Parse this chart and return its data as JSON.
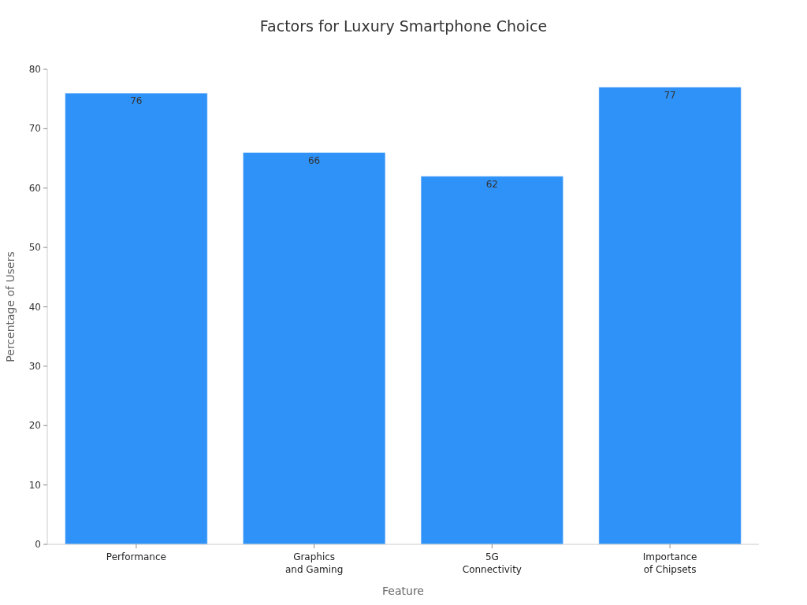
{
  "chart_data": {
    "type": "bar",
    "title": "Factors for Luxury Smartphone Choice",
    "xlabel": "Feature",
    "ylabel": "Percentage of Users",
    "categories": [
      "Performance",
      "Graphics\nand Gaming",
      "5G\nConnectivity",
      "Importance\nof Chipsets"
    ],
    "values": [
      76,
      66,
      62,
      77
    ],
    "color": "#2f92f8",
    "ylim": [
      0,
      80
    ],
    "yticks": [
      0,
      10,
      20,
      30,
      40,
      50,
      60,
      70,
      80
    ],
    "grid": false,
    "data_labels": true
  }
}
